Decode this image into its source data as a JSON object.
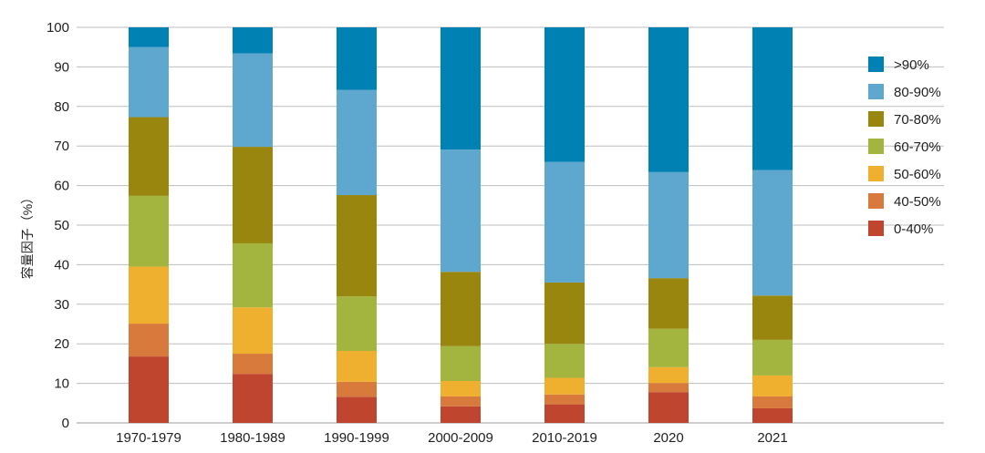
{
  "chart_data": {
    "type": "bar",
    "stacked": true,
    "title": "",
    "xlabel": "",
    "ylabel": "容量因子（%）",
    "ylim": [
      0,
      100
    ],
    "yticks": [
      0,
      10,
      20,
      30,
      40,
      50,
      60,
      70,
      80,
      90,
      100
    ],
    "grid": true,
    "legend_position": "right",
    "categories": [
      "1970-1979",
      "1980-1989",
      "1990-1999",
      "2000-2009",
      "2010-2019",
      "2020",
      "2021"
    ],
    "series": [
      {
        "name": "0-40%",
        "color": "#c0452e",
        "values": [
          16.8,
          12.4,
          6.6,
          4.2,
          4.7,
          7.8,
          3.7
        ]
      },
      {
        "name": "40-50%",
        "color": "#d87a3b",
        "values": [
          8.3,
          5.1,
          3.8,
          2.5,
          2.5,
          2.3,
          3.0
        ]
      },
      {
        "name": "50-60%",
        "color": "#f0b02f",
        "values": [
          14.4,
          11.7,
          7.8,
          3.9,
          4.2,
          4.0,
          5.3
        ]
      },
      {
        "name": "60-70%",
        "color": "#a3b53e",
        "values": [
          17.9,
          16.2,
          13.8,
          8.8,
          8.6,
          9.7,
          9.0
        ]
      },
      {
        "name": "70-80%",
        "color": "#98860f",
        "values": [
          19.9,
          24.4,
          25.6,
          18.8,
          15.5,
          12.8,
          11.2
        ]
      },
      {
        "name": "80-90%",
        "color": "#5ea8d0",
        "values": [
          17.7,
          23.6,
          26.6,
          30.9,
          30.5,
          26.8,
          31.7
        ]
      },
      {
        "name": ">90%",
        "color": "#0081b3",
        "values": [
          5.0,
          6.6,
          15.8,
          30.9,
          34.0,
          36.6,
          36.1
        ]
      }
    ]
  }
}
